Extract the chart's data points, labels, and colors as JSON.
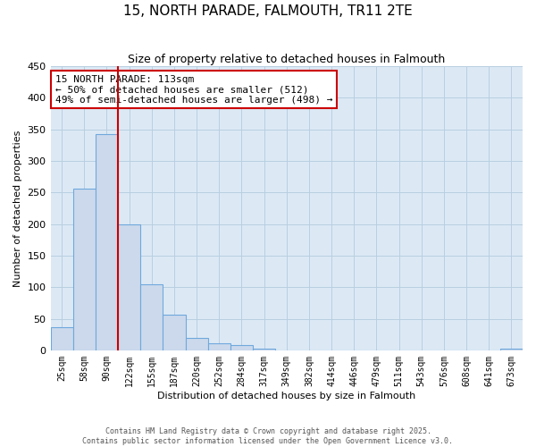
{
  "title": "15, NORTH PARADE, FALMOUTH, TR11 2TE",
  "subtitle": "Size of property relative to detached houses in Falmouth",
  "xlabel": "Distribution of detached houses by size in Falmouth",
  "ylabel": "Number of detached properties",
  "bar_labels": [
    "25sqm",
    "58sqm",
    "90sqm",
    "122sqm",
    "155sqm",
    "187sqm",
    "220sqm",
    "252sqm",
    "284sqm",
    "317sqm",
    "349sqm",
    "382sqm",
    "414sqm",
    "446sqm",
    "479sqm",
    "511sqm",
    "543sqm",
    "576sqm",
    "608sqm",
    "641sqm",
    "673sqm"
  ],
  "bar_values": [
    36,
    256,
    343,
    199,
    105,
    57,
    20,
    11,
    8,
    3,
    0,
    0,
    0,
    0,
    0,
    0,
    0,
    0,
    0,
    0,
    2
  ],
  "bar_color": "#ccd9ec",
  "bar_edge_color": "#6fa8dc",
  "vline_color": "#cc0000",
  "ylim": [
    0,
    450
  ],
  "yticks": [
    0,
    50,
    100,
    150,
    200,
    250,
    300,
    350,
    400,
    450
  ],
  "annotation_title": "15 NORTH PARADE: 113sqm",
  "annotation_line1": "← 50% of detached houses are smaller (512)",
  "annotation_line2": "49% of semi-detached houses are larger (498) →",
  "bg_color": "#ffffff",
  "plot_bg_color": "#dce9f5",
  "grid_color": "#b8cfe0",
  "footer_line1": "Contains HM Land Registry data © Crown copyright and database right 2025.",
  "footer_line2": "Contains public sector information licensed under the Open Government Licence v3.0."
}
